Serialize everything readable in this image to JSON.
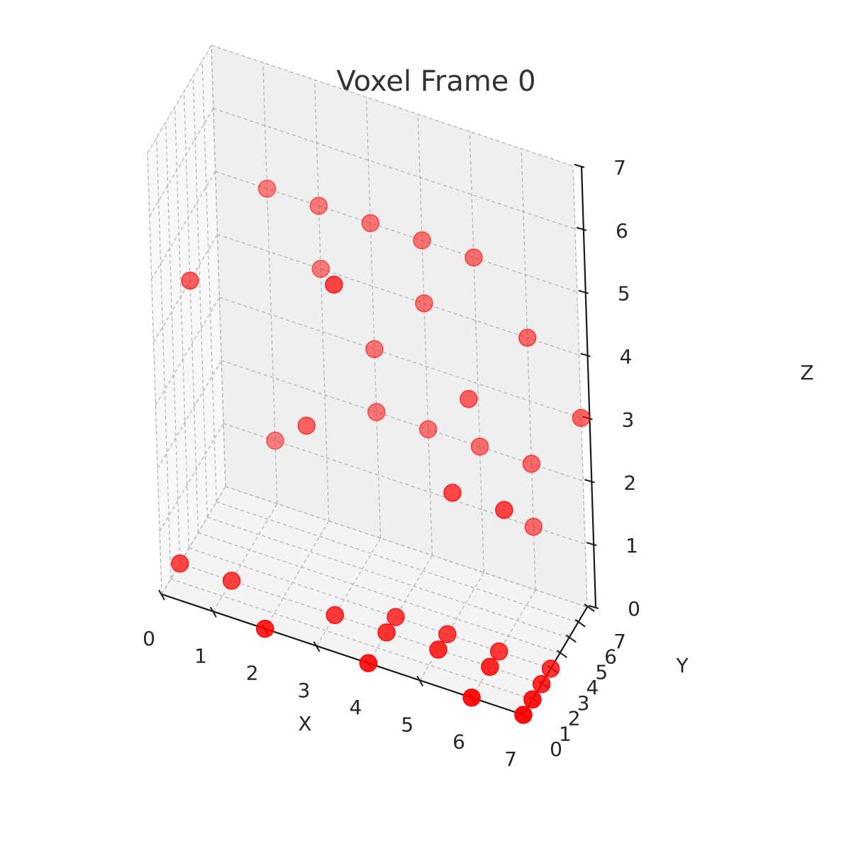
{
  "chart_data": {
    "type": "scatter3d",
    "title": "Voxel Frame 0",
    "xlabel": "X",
    "ylabel": "Y",
    "zlabel": "Z",
    "xlim": [
      0,
      7
    ],
    "ylim": [
      0,
      7
    ],
    "zlim": [
      0,
      7
    ],
    "xticks": [
      "0",
      "1",
      "2",
      "3",
      "4",
      "5",
      "6",
      "7"
    ],
    "yticks": [
      "0",
      "1",
      "2",
      "3",
      "4",
      "5",
      "6",
      "7"
    ],
    "zticks": [
      "0",
      "1",
      "2",
      "3",
      "4",
      "5",
      "6",
      "7"
    ],
    "grid": true,
    "marker_color": "#ff0000",
    "pane_colors": {
      "bottom": "#f4f4f4",
      "left": "#f8f8f8",
      "back": "#efefef"
    },
    "points": [
      {
        "x": 0,
        "y": 2,
        "z": 0
      },
      {
        "x": 1,
        "y": 2,
        "z": 0
      },
      {
        "x": 2,
        "y": 0,
        "z": 0
      },
      {
        "x": 3,
        "y": 2,
        "z": 0
      },
      {
        "x": 4,
        "y": 0,
        "z": 0
      },
      {
        "x": 4,
        "y": 2,
        "z": 0
      },
      {
        "x": 4,
        "y": 3,
        "z": 0
      },
      {
        "x": 5,
        "y": 2,
        "z": 0
      },
      {
        "x": 5,
        "y": 3,
        "z": 0
      },
      {
        "x": 6,
        "y": 0,
        "z": 0
      },
      {
        "x": 6,
        "y": 2,
        "z": 0
      },
      {
        "x": 6,
        "y": 3,
        "z": 0
      },
      {
        "x": 7,
        "y": 0,
        "z": 0
      },
      {
        "x": 7,
        "y": 1,
        "z": 0
      },
      {
        "x": 7,
        "y": 2,
        "z": 0
      },
      {
        "x": 7,
        "y": 3,
        "z": 0
      },
      {
        "x": 0,
        "y": 4,
        "z": 4
      },
      {
        "x": 1,
        "y": 7,
        "z": 1
      },
      {
        "x": 6,
        "y": 4,
        "z": 2
      },
      {
        "x": 1,
        "y": 7,
        "z": 5
      },
      {
        "x": 2,
        "y": 7,
        "z": 4
      },
      {
        "x": 3,
        "y": 7,
        "z": 3
      },
      {
        "x": 6,
        "y": 7,
        "z": 1
      },
      {
        "x": 4,
        "y": 7,
        "z": 4
      },
      {
        "x": 5,
        "y": 7,
        "z": 5
      },
      {
        "x": 5,
        "y": 6,
        "z": 3
      },
      {
        "x": 6,
        "y": 7,
        "z": 4
      },
      {
        "x": 7,
        "y": 7,
        "z": 3
      },
      {
        "x": 3,
        "y": 7,
        "z": 2
      },
      {
        "x": 4,
        "y": 7,
        "z": 2
      },
      {
        "x": 5,
        "y": 7,
        "z": 2
      },
      {
        "x": 6,
        "y": 7,
        "z": 2
      },
      {
        "x": 2,
        "y": 7,
        "z": 5
      },
      {
        "x": 3,
        "y": 7,
        "z": 5
      },
      {
        "x": 4,
        "y": 7,
        "z": 5
      },
      {
        "x": 2,
        "y": 5,
        "z": 2
      },
      {
        "x": 5,
        "y": 4,
        "z": 2
      },
      {
        "x": 3,
        "y": 3,
        "z": 5
      }
    ]
  }
}
